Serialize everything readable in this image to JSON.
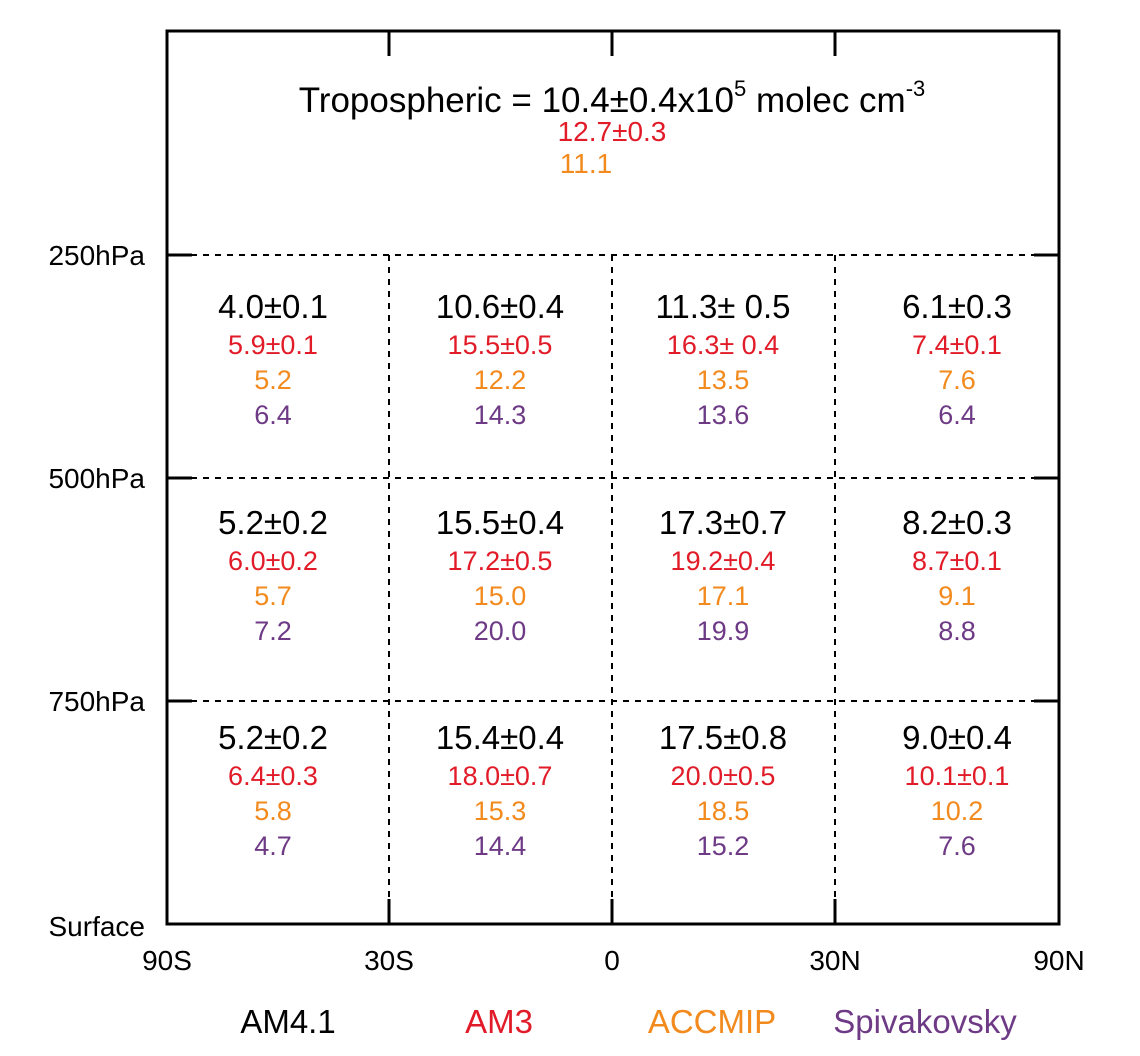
{
  "colors": {
    "AM4.1": "#000000",
    "AM3": "#e11b28",
    "ACCMIP": "#f28a1e",
    "Spivakovsky": "#6e3a86"
  },
  "chart_data": {
    "type": "table",
    "tropospheric": {
      "prefix": "Tropospheric = 10.4±0.4x10",
      "exponent": "5",
      "unit_main": " molec cm",
      "unit_exponent": "-3",
      "am3": "12.7±0.3",
      "accmip": "11.1"
    },
    "x_ticks": [
      "90S",
      "30S",
      "0",
      "30N",
      "90N"
    ],
    "y_ticks": [
      "250hPa",
      "500hPa",
      "750hPa",
      "Surface"
    ],
    "legend": [
      "AM4.1",
      "AM3",
      "ACCMIP",
      "Spivakovsky"
    ],
    "cells": [
      [
        [
          "4.0±0.1",
          "5.9±0.1",
          "5.2",
          "6.4"
        ],
        [
          "10.6±0.4",
          "15.5±0.5",
          "12.2",
          "14.3"
        ],
        [
          "11.3± 0.5",
          "16.3± 0.4",
          "13.5",
          "13.6"
        ],
        [
          "6.1±0.3",
          "7.4±0.1",
          "7.6",
          "6.4"
        ]
      ],
      [
        [
          "5.2±0.2",
          "6.0±0.2",
          "5.7",
          "7.2"
        ],
        [
          "15.5±0.4",
          "17.2±0.5",
          "15.0",
          "20.0"
        ],
        [
          "17.3±0.7",
          "19.2±0.4",
          "17.1",
          "19.9"
        ],
        [
          "8.2±0.3",
          "8.7±0.1",
          "9.1",
          "8.8"
        ]
      ],
      [
        [
          "5.2±0.2",
          "6.4±0.3",
          "5.8",
          "4.7"
        ],
        [
          "15.4±0.4",
          "18.0±0.7",
          "15.3",
          "14.4"
        ],
        [
          "17.5±0.8",
          "20.0±0.5",
          "18.5",
          "15.2"
        ],
        [
          "9.0±0.4",
          "10.1±0.1",
          "10.2",
          "7.6"
        ]
      ]
    ]
  }
}
